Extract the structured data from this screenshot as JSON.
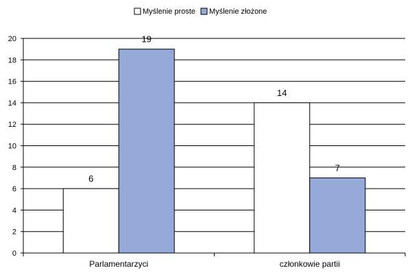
{
  "chart_data": {
    "type": "bar",
    "categories": [
      "Parlamentarzyci",
      "członkowie partii"
    ],
    "series": [
      {
        "name": "Myślenie proste",
        "values": [
          6,
          14
        ],
        "color": "#ffffff"
      },
      {
        "name": "Myślenie złożone",
        "values": [
          19,
          7
        ],
        "color": "#94a9d8"
      }
    ],
    "ylim": [
      0,
      20
    ],
    "yticks": [
      0,
      2,
      4,
      6,
      8,
      10,
      12,
      14,
      16,
      18,
      20
    ],
    "grid": true,
    "legend": "top",
    "title": "",
    "xlabel": "",
    "ylabel": ""
  }
}
